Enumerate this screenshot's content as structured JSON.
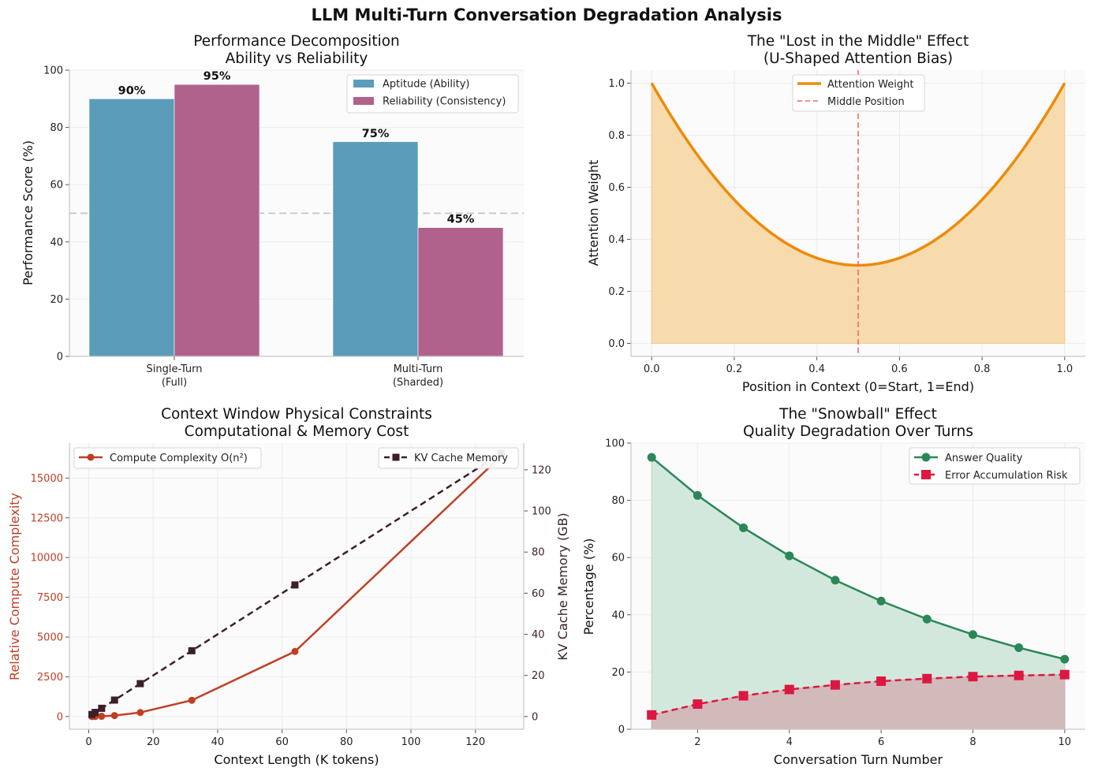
{
  "suptitle": "LLM Multi-Turn Conversation Degradation Analysis",
  "colors": {
    "aptitude": "#5a9cb9",
    "reliability": "#b0628c",
    "attention": "#ee8a0a",
    "attention_fill": "#f8dbad",
    "middle_line": "#f06a6a",
    "compute": "#c03f24",
    "kv": "#3b1f2b",
    "quality": "#2b8757",
    "quality_fill": "#d3e8dd",
    "error": "#dc1840",
    "error_fill": "#d2baba",
    "panel_bg": "#fbfbfb",
    "grid": "#ececec",
    "spine": "#c8c8c8"
  },
  "chart_data": [
    {
      "type": "bar",
      "title": "Performance Decomposition",
      "subtitle": "Ability vs Reliability",
      "xlabel": "",
      "ylabel": "Performance Score (%)",
      "ylim": [
        0,
        100
      ],
      "yticks": [
        "0",
        "20",
        "40",
        "60",
        "80",
        "100"
      ],
      "categories": [
        {
          "line1": "Single-Turn",
          "line2": "(Full)"
        },
        {
          "line1": "Multi-Turn",
          "line2": "(Sharded)"
        }
      ],
      "series": [
        {
          "name": "Aptitude (Ability)",
          "values": [
            90,
            75
          ],
          "labels": [
            "90%",
            "75%"
          ]
        },
        {
          "name": "Reliability (Consistency)",
          "values": [
            95,
            45
          ],
          "labels": [
            "95%",
            "45%"
          ]
        }
      ],
      "reference_line": 50,
      "legend_loc": "upper right"
    },
    {
      "type": "line",
      "title": "The \"Lost in the Middle\" Effect",
      "subtitle": "(U-Shaped Attention Bias)",
      "xlabel": "Position in Context (0=Start, 1=End)",
      "ylabel": "Attention Weight",
      "xlim": [
        -0.05,
        1.05
      ],
      "ylim": [
        -0.05,
        1.05
      ],
      "xticks": [
        "0.0",
        "0.2",
        "0.4",
        "0.6",
        "0.8",
        "1.0"
      ],
      "yticks": [
        "0.0",
        "0.2",
        "0.4",
        "0.6",
        "0.8",
        "1.0"
      ],
      "x": [
        0.0,
        0.05,
        0.1,
        0.15,
        0.2,
        0.25,
        0.3,
        0.35,
        0.4,
        0.45,
        0.5,
        0.55,
        0.6,
        0.65,
        0.7,
        0.75,
        0.8,
        0.85,
        0.9,
        0.95,
        1.0
      ],
      "y": [
        1.0,
        0.874,
        0.76,
        0.658,
        0.568,
        0.49,
        0.424,
        0.37,
        0.328,
        0.298,
        0.3,
        0.298,
        0.328,
        0.37,
        0.424,
        0.49,
        0.568,
        0.658,
        0.76,
        0.874,
        1.0
      ],
      "series_name": "Attention Weight",
      "vline_name": "Middle Position",
      "vline_x": 0.5,
      "legend_loc": "upper center"
    },
    {
      "type": "line",
      "title": "Context Window Physical Constraints",
      "subtitle": "Computational & Memory Cost",
      "xlabel": "Context Length (K tokens)",
      "ylabel": "Relative Compute Complexity",
      "ylabel_right": "KV Cache Memory (GB)",
      "xlim": [
        -6,
        135
      ],
      "ylim": [
        -800,
        17200
      ],
      "ylim_right": [
        -6.2,
        133
      ],
      "xticks": [
        "0",
        "20",
        "40",
        "60",
        "80",
        "100",
        "120"
      ],
      "yticks": [
        "0",
        "2500",
        "5000",
        "7500",
        "10000",
        "12500",
        "15000"
      ],
      "yticks_right": [
        "0",
        "20",
        "40",
        "60",
        "80",
        "100",
        "120"
      ],
      "x": [
        1,
        2,
        4,
        8,
        16,
        32,
        64,
        128
      ],
      "series": [
        {
          "name": "Compute Complexity O(n²)",
          "values": [
            1,
            4,
            16,
            64,
            256,
            1024,
            4096,
            16384
          ],
          "axis": "left"
        },
        {
          "name": "KV Cache Memory",
          "values": [
            1,
            2,
            4,
            8,
            16,
            32,
            64,
            128
          ],
          "axis": "right"
        }
      ]
    },
    {
      "type": "line",
      "title": "The \"Snowball\" Effect",
      "subtitle": "Quality Degradation Over Turns",
      "xlabel": "Conversation Turn Number",
      "ylabel": "Percentage (%)",
      "xlim": [
        0.55,
        10.45
      ],
      "ylim": [
        0,
        100
      ],
      "xticks": [
        "2",
        "4",
        "6",
        "8",
        "10"
      ],
      "yticks": [
        "0",
        "20",
        "40",
        "60",
        "80",
        "100"
      ],
      "x": [
        1,
        2,
        3,
        4,
        5,
        6,
        7,
        8,
        9,
        10
      ],
      "series": [
        {
          "name": "Answer Quality",
          "values": [
            95,
            81.7,
            70.4,
            60.6,
            52.1,
            44.8,
            38.5,
            33.1,
            28.5,
            24.5
          ]
        },
        {
          "name": "Error Accumulation Risk",
          "values": [
            5,
            8.8,
            11.7,
            13.9,
            15.5,
            16.8,
            17.7,
            18.4,
            18.8,
            19.1
          ]
        }
      ],
      "legend_loc": "upper right"
    }
  ]
}
